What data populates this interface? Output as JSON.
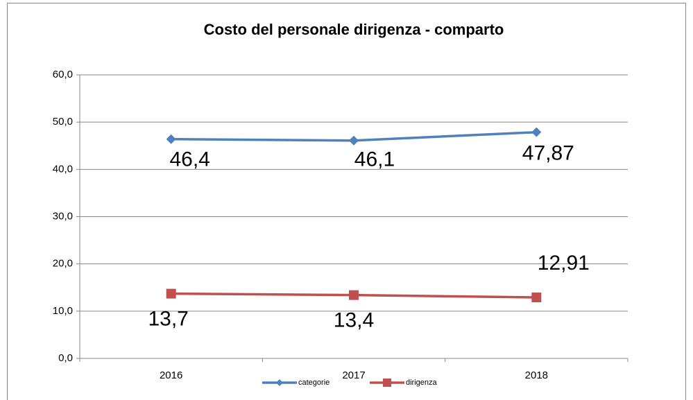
{
  "chart_data": {
    "type": "line",
    "title": "Costo del personale dirigenza - comparto",
    "categories": [
      "2016",
      "2017",
      "2018"
    ],
    "series": [
      {
        "name": "categorie",
        "color": "#4f81bd",
        "marker": "diamond",
        "values": [
          46.4,
          46.1,
          47.87
        ],
        "value_labels": [
          "46,4",
          "46,1",
          "47,87"
        ]
      },
      {
        "name": "dirigenza",
        "color": "#c0504d",
        "marker": "square",
        "values": [
          13.7,
          13.4,
          12.91
        ],
        "value_labels": [
          "13,7",
          "13,4",
          "12,91"
        ]
      }
    ],
    "ylim": [
      0,
      60
    ],
    "yticks": [
      {
        "value": 0,
        "label": "0,0"
      },
      {
        "value": 10,
        "label": "10,0"
      },
      {
        "value": 20,
        "label": "20,0"
      },
      {
        "value": 30,
        "label": "30,0"
      },
      {
        "value": 40,
        "label": "40,0"
      },
      {
        "value": 50,
        "label": "50,0"
      },
      {
        "value": 60,
        "label": "60,0"
      }
    ],
    "grid": true,
    "legend": "bottom"
  }
}
